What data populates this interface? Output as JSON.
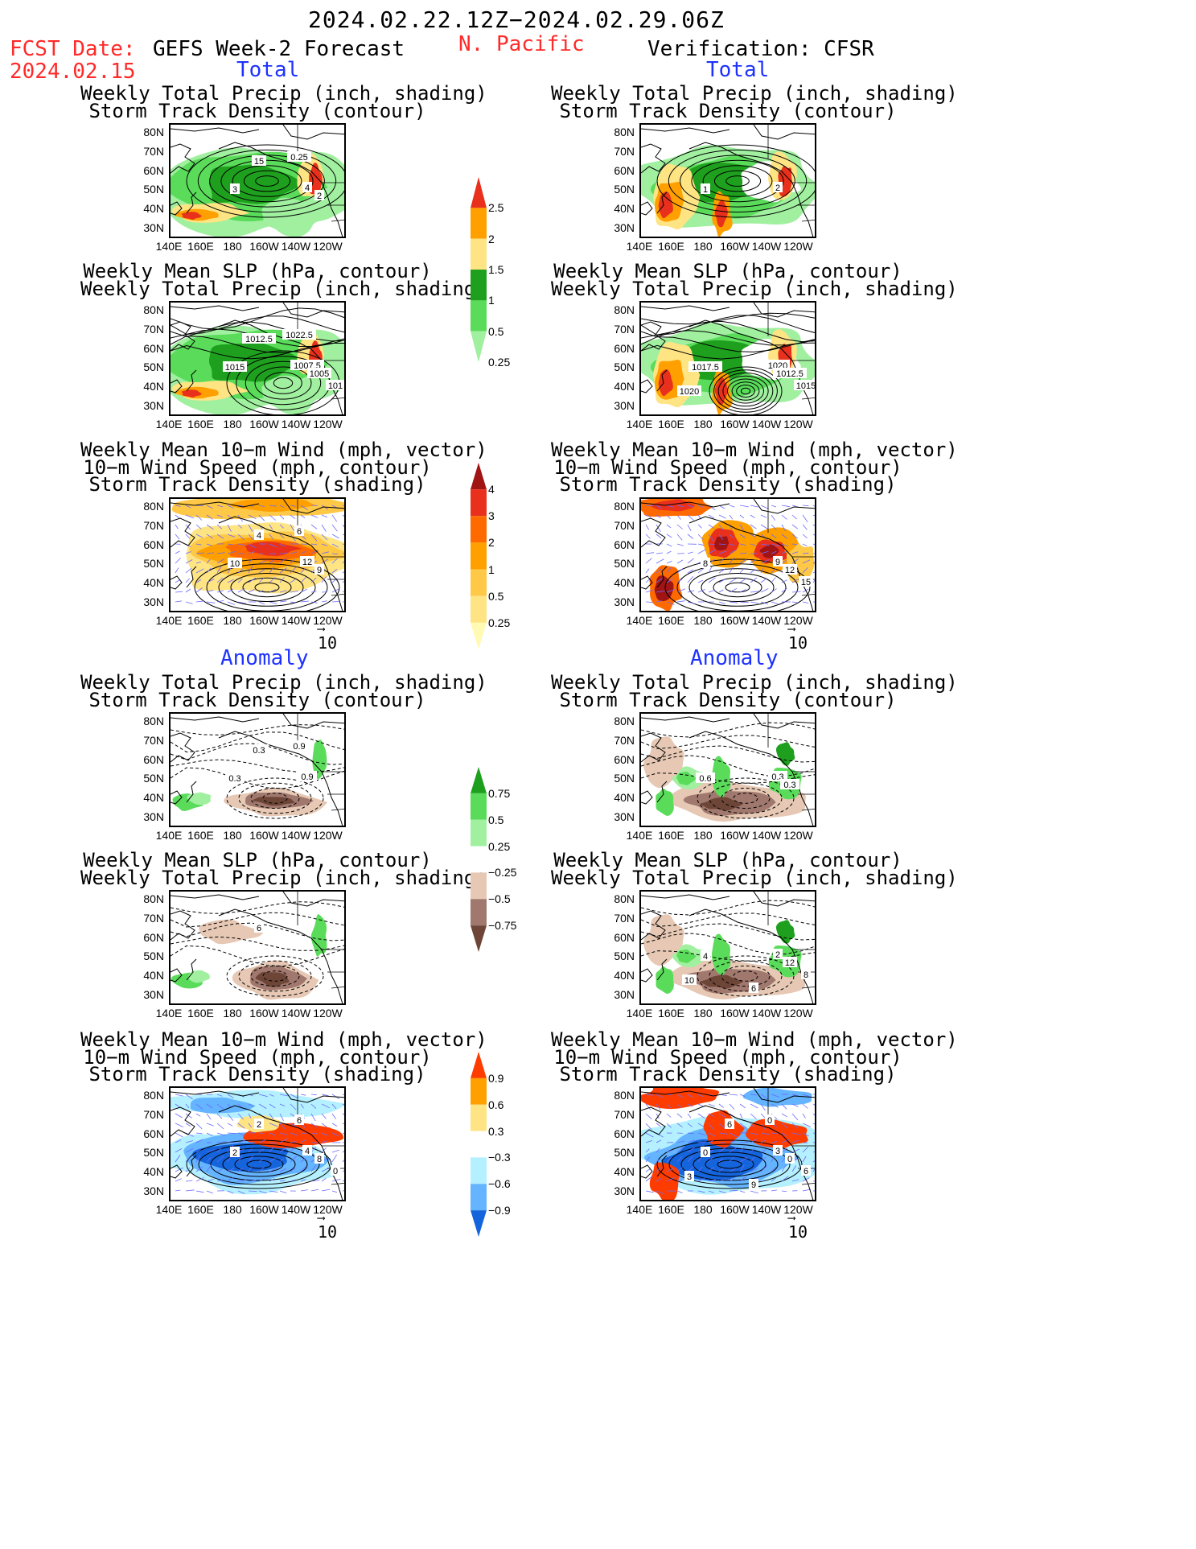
{
  "header": {
    "date_range": "2024.02.22.12Z−2024.02.29.06Z",
    "fcst_label": "FCST Date:",
    "fcst_date": "2024.02.15",
    "left_heading": "GEFS Week-2 Forecast",
    "region": "N. Pacific",
    "right_heading": "Verification: CFSR"
  },
  "sections": {
    "total": "Total",
    "anomaly": "Anomaly"
  },
  "panel_titles": {
    "precip_track": [
      "Weekly Total Precip (inch, shading)",
      "Storm Track Density (contour)"
    ],
    "slp_precip": [
      "Weekly Mean SLP (hPa, contour)",
      "Weekly Total Precip (inch, shading)"
    ],
    "wind": [
      "Weekly Mean 10−m Wind (mph, vector)",
      "10−m Wind Speed (mph, contour)",
      "Storm Track Density (shading)"
    ]
  },
  "axes": {
    "lat_labels": [
      "80N",
      "70N",
      "60N",
      "50N",
      "40N",
      "30N"
    ],
    "lon_labels": [
      "140E",
      "160E",
      "180",
      "160W",
      "140W",
      "120W"
    ]
  },
  "vector_scale": "10",
  "colorbars": {
    "precip_total": {
      "labels": [
        "2.5",
        "2",
        "1.5",
        "1",
        "0.5",
        "0.25"
      ],
      "colors": [
        "#e8301c",
        "#ffa000",
        "#ffe484",
        "#1ea01e",
        "#5adc5a",
        "#a0f0a0"
      ]
    },
    "track_total": {
      "labels": [
        "4",
        "3",
        "2",
        "1",
        "0.5",
        "0.25"
      ],
      "colors": [
        "#a01414",
        "#e8301c",
        "#ff6a00",
        "#ffa000",
        "#ffc846",
        "#ffe484",
        "#fffab4"
      ]
    },
    "precip_anom": {
      "labels": [
        "0.75",
        "0.5",
        "0.25",
        "−0.25",
        "−0.5",
        "−0.75"
      ],
      "colors": [
        "#1ea01e",
        "#5adc5a",
        "#a0f0a0",
        "#ffffff",
        "#e6c8b4",
        "#a0786e",
        "#6e4637"
      ]
    },
    "track_anom": {
      "labels": [
        "0.9",
        "0.6",
        "0.3",
        "−0.3",
        "−0.6",
        "−0.9"
      ],
      "colors": [
        "#ff3c00",
        "#ffa000",
        "#ffe484",
        "#ffffff",
        "#b4f0ff",
        "#64b4ff",
        "#1464dc"
      ]
    }
  },
  "map_labels": {
    "f_total_precip": [
      "15",
      "0.25",
      "3",
      "4",
      "2"
    ],
    "v_total_precip": [
      "1",
      "2"
    ],
    "f_total_slp": [
      "1012.5",
      "1022.5",
      "1015",
      "1007.5",
      "1005",
      "101"
    ],
    "v_total_slp": [
      "1017.5",
      "1020",
      "1012.5",
      "1015",
      "1020"
    ],
    "f_total_wind": [
      "4",
      "6",
      "10",
      "12",
      "9"
    ],
    "v_total_wind": [
      "8",
      "9",
      "12",
      "15"
    ],
    "f_anom_precip": [
      "0.3",
      "0.9",
      "0.3",
      "0.9"
    ],
    "v_anom_precip": [
      "0.6",
      "0.3",
      "0.3"
    ],
    "f_anom_slp": [
      "6"
    ],
    "v_anom_slp": [
      "4",
      "2",
      "12",
      "8",
      "10",
      "6"
    ],
    "f_anom_wind": [
      "2",
      "6",
      "2",
      "4",
      "8",
      "0"
    ],
    "v_anom_wind": [
      "0",
      "3",
      "0",
      "6",
      "3",
      "9",
      "6",
      "0"
    ]
  }
}
